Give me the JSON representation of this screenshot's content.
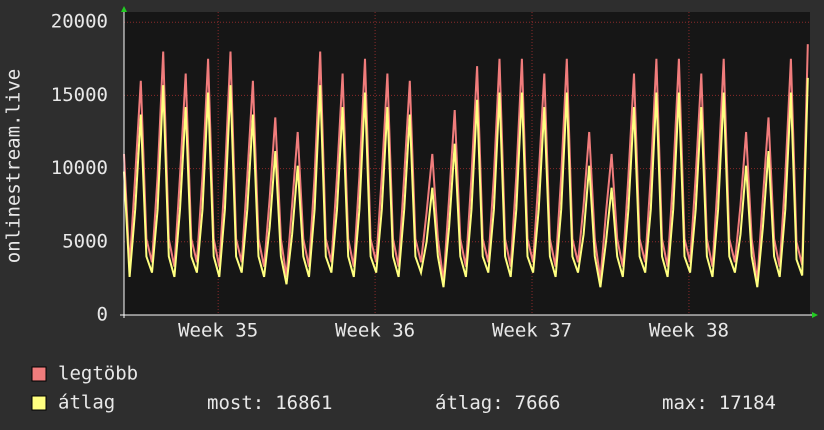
{
  "chart_data": {
    "type": "line",
    "ylabel": "onlinestream.live",
    "xlim": [
      0,
      30.6
    ],
    "ylim": [
      0,
      20700
    ],
    "yticks": [
      0,
      5000,
      10000,
      15000,
      20000
    ],
    "xticks": [
      {
        "value": 4.2,
        "label": "Week 35"
      },
      {
        "value": 11.2,
        "label": "Week 36"
      },
      {
        "value": 18.2,
        "label": "Week 37"
      },
      {
        "value": 25.2,
        "label": "Week 38"
      }
    ],
    "grid": true,
    "x": [
      0,
      0.25,
      0.5,
      0.75,
      1,
      1.25,
      1.5,
      1.75,
      2,
      2.25,
      2.5,
      2.75,
      3,
      3.25,
      3.5,
      3.75,
      4,
      4.25,
      4.5,
      4.75,
      5,
      5.25,
      5.5,
      5.75,
      6,
      6.25,
      6.5,
      6.75,
      7,
      7.25,
      7.5,
      7.75,
      8,
      8.25,
      8.5,
      8.75,
      9,
      9.25,
      9.5,
      9.75,
      10,
      10.25,
      10.5,
      10.75,
      11,
      11.25,
      11.5,
      11.75,
      12,
      12.25,
      12.5,
      12.75,
      13,
      13.25,
      13.5,
      13.75,
      14,
      14.25,
      14.5,
      14.75,
      15,
      15.25,
      15.5,
      15.75,
      16,
      16.25,
      16.5,
      16.75,
      17,
      17.25,
      17.5,
      17.75,
      18,
      18.25,
      18.5,
      18.75,
      19,
      19.25,
      19.5,
      19.75,
      20,
      20.25,
      20.5,
      20.75,
      21,
      21.25,
      21.5,
      21.75,
      22,
      22.25,
      22.5,
      22.75,
      23,
      23.25,
      23.5,
      23.75,
      24,
      24.25,
      24.5,
      24.75,
      25,
      25.25,
      25.5,
      25.75,
      26,
      26.25,
      26.5,
      26.75,
      27,
      27.25,
      27.5,
      27.75,
      28,
      28.25,
      28.5,
      28.75,
      29,
      29.25,
      29.5,
      29.75,
      30,
      30.25,
      30.5
    ],
    "series": [
      {
        "name": "legtöbb",
        "color": "#f07c7c",
        "values": [
          11000,
          3300,
          9500,
          16000,
          5200,
          3600,
          9500,
          18000,
          5200,
          3300,
          9500,
          16500,
          5200,
          3600,
          9500,
          17500,
          5200,
          3300,
          9500,
          18000,
          5200,
          3600,
          9500,
          16000,
          5200,
          3300,
          8000,
          13500,
          5200,
          2600,
          7500,
          12500,
          5200,
          3300,
          9500,
          18000,
          5200,
          3600,
          9500,
          16500,
          5200,
          3300,
          9500,
          17500,
          5200,
          3600,
          9500,
          16500,
          5200,
          3300,
          9500,
          16000,
          5200,
          3600,
          7000,
          11000,
          5200,
          2300,
          8000,
          14000,
          5200,
          3300,
          9500,
          17000,
          5200,
          3600,
          9500,
          17500,
          5200,
          3300,
          9500,
          17500,
          5200,
          3600,
          9500,
          16500,
          5200,
          3300,
          9500,
          17500,
          5200,
          3600,
          7500,
          12500,
          5200,
          2400,
          7000,
          11000,
          5200,
          3300,
          9500,
          16500,
          5200,
          3600,
          9500,
          17500,
          5200,
          3300,
          9500,
          17500,
          5200,
          3600,
          9500,
          16500,
          5200,
          3300,
          9500,
          17500,
          5200,
          3600,
          7500,
          12500,
          5200,
          2300,
          8000,
          13500,
          5200,
          3300,
          9500,
          17500,
          5000,
          3400,
          18500
        ]
      },
      {
        "name": "átlag",
        "color": "#ffff80",
        "values": [
          9800,
          2600,
          7200,
          13700,
          4000,
          2900,
          7200,
          15700,
          4000,
          2600,
          7200,
          14200,
          4000,
          2900,
          7200,
          15200,
          4000,
          2600,
          7200,
          15700,
          4000,
          2900,
          7200,
          13700,
          4000,
          2600,
          6000,
          11200,
          4000,
          2100,
          5500,
          10200,
          4000,
          2600,
          7200,
          15700,
          4000,
          2900,
          7200,
          14200,
          4000,
          2600,
          7200,
          15200,
          4000,
          2900,
          7200,
          14200,
          4000,
          2600,
          7200,
          13700,
          4000,
          2900,
          5000,
          8700,
          4000,
          1900,
          6000,
          11700,
          4000,
          2600,
          7200,
          14700,
          4000,
          2900,
          7200,
          15200,
          4000,
          2600,
          7200,
          15200,
          4000,
          2900,
          7200,
          14200,
          4000,
          2600,
          7200,
          15200,
          4000,
          2900,
          5500,
          10200,
          4000,
          1900,
          5000,
          8700,
          4000,
          2600,
          7200,
          14200,
          4000,
          2900,
          7200,
          15200,
          4000,
          2600,
          7200,
          15200,
          4000,
          2900,
          7200,
          14200,
          4000,
          2600,
          7200,
          15200,
          4000,
          2900,
          5500,
          10200,
          4000,
          1900,
          6000,
          11200,
          4000,
          2600,
          7200,
          15200,
          3800,
          2700,
          16200
        ]
      }
    ],
    "stats": [
      {
        "label": "most:",
        "value": 16861
      },
      {
        "label": "átlag:",
        "value": 7666
      },
      {
        "label": "max:",
        "value": 17184
      }
    ]
  }
}
